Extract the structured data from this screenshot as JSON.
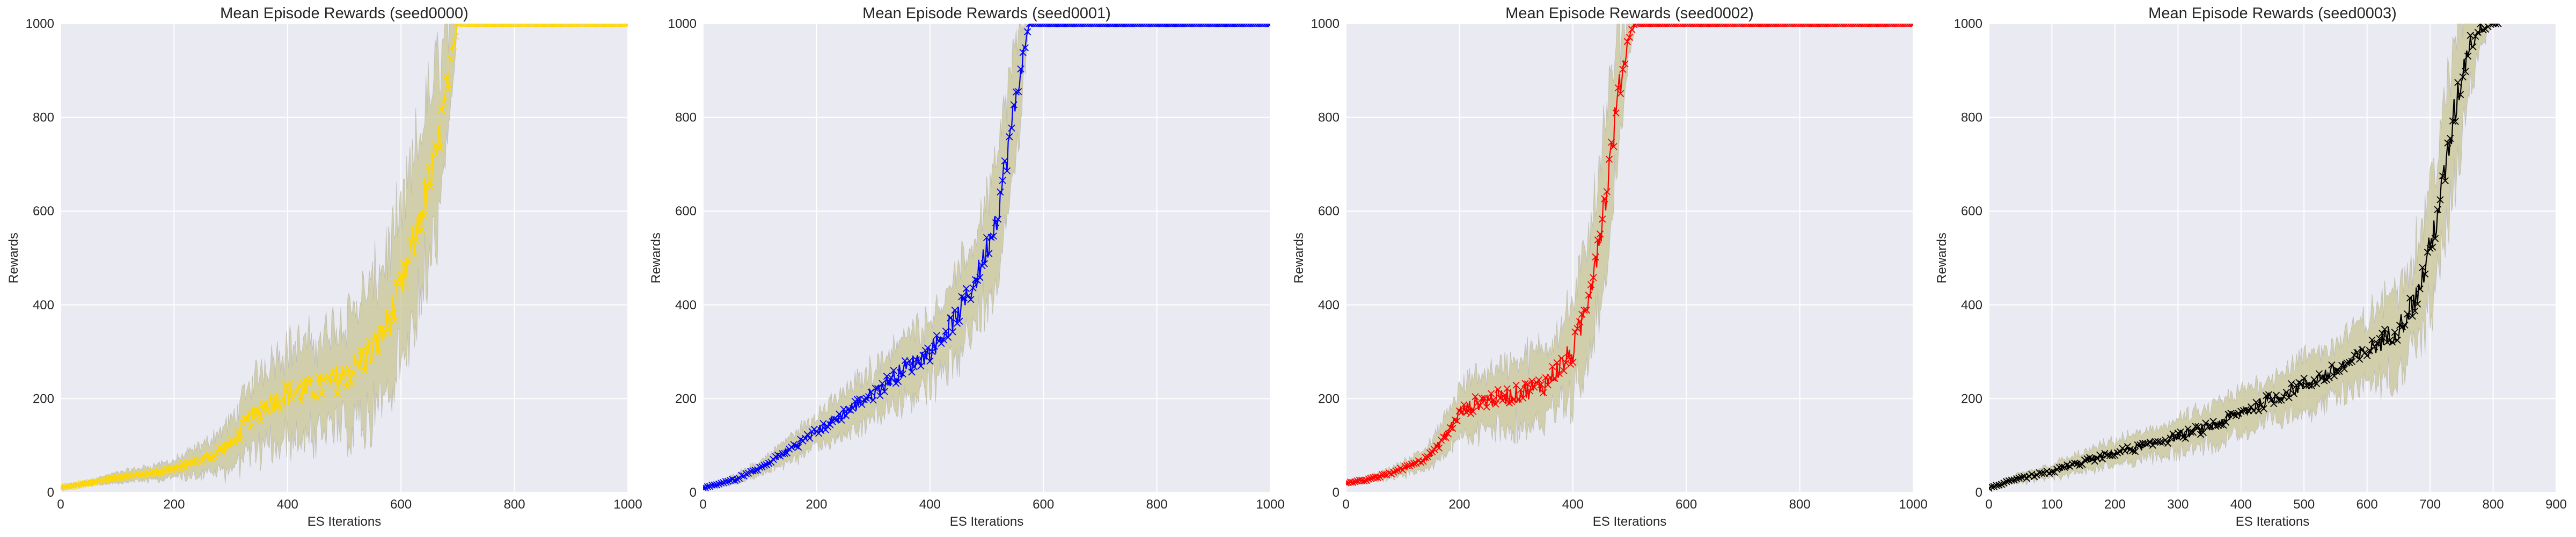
{
  "style": {
    "facecolor": "#EAEAF2",
    "gridcolor": "#FFFFFF",
    "band_color": "#C8C494",
    "band_edge_color": "#A9A9A9"
  },
  "chart_data": [
    {
      "type": "line",
      "title": "Mean Episode Rewards (seed0000)",
      "xlabel": "ES Iterations",
      "ylabel": "Rewards",
      "xlim": [
        0,
        1000
      ],
      "ylim": [
        0,
        1000
      ],
      "xticks": [
        0,
        200,
        400,
        600,
        800,
        1000
      ],
      "yticks": [
        0,
        200,
        400,
        600,
        800,
        1000
      ],
      "grid": true,
      "marker": "x",
      "color": "#FFD700",
      "reach_max_at": 700,
      "series": [
        {
          "x": [
            0,
            50,
            100,
            150,
            200,
            250,
            300,
            330,
            360,
            400,
            450,
            500,
            550,
            580,
            600,
            620,
            640,
            660,
            680,
            700,
            720,
            760,
            800,
            850,
            900,
            950,
            1000
          ],
          "y": [
            10,
            20,
            32,
            40,
            50,
            70,
            100,
            150,
            185,
            210,
            220,
            250,
            300,
            370,
            430,
            520,
            620,
            700,
            850,
            1000,
            1000,
            1000,
            1000,
            1000,
            1000,
            1000,
            1000
          ],
          "spread": [
            3,
            6,
            10,
            14,
            18,
            30,
            50,
            70,
            90,
            100,
            100,
            120,
            140,
            150,
            160,
            170,
            180,
            190,
            150,
            0,
            0,
            0,
            0,
            0,
            0,
            0,
            0
          ]
        }
      ]
    },
    {
      "type": "line",
      "title": "Mean Episode Rewards (seed0001)",
      "xlabel": "ES Iterations",
      "ylabel": "Rewards",
      "xlim": [
        0,
        1000
      ],
      "ylim": [
        0,
        1000
      ],
      "xticks": [
        0,
        200,
        400,
        600,
        800,
        1000
      ],
      "yticks": [
        0,
        200,
        400,
        600,
        800,
        1000
      ],
      "grid": true,
      "marker": "x",
      "color": "#0000FF",
      "reach_max_at": 575,
      "series": [
        {
          "x": [
            0,
            50,
            100,
            150,
            200,
            250,
            300,
            350,
            400,
            450,
            480,
            500,
            520,
            540,
            560,
            575,
            600,
            650,
            700,
            750,
            800,
            850,
            900,
            950,
            1000
          ],
          "y": [
            10,
            25,
            50,
            90,
            130,
            170,
            210,
            260,
            300,
            380,
            450,
            520,
            600,
            750,
            900,
            1000,
            1000,
            1000,
            1000,
            1000,
            1000,
            1000,
            1000,
            1000,
            1000
          ],
          "spread": [
            3,
            8,
            15,
            25,
            35,
            45,
            55,
            65,
            75,
            85,
            95,
            110,
            120,
            130,
            90,
            0,
            0,
            0,
            0,
            0,
            0,
            0,
            0,
            0,
            0
          ]
        }
      ]
    },
    {
      "type": "line",
      "title": "Mean Episode Rewards (seed0002)",
      "xlabel": "ES Iterations",
      "ylabel": "Rewards",
      "xlim": [
        0,
        1000
      ],
      "ylim": [
        0,
        1000
      ],
      "xticks": [
        0,
        200,
        400,
        600,
        800,
        1000
      ],
      "yticks": [
        0,
        200,
        400,
        600,
        800,
        1000
      ],
      "grid": true,
      "marker": "x",
      "color": "#FF0000",
      "reach_max_at": 510,
      "series": [
        {
          "x": [
            0,
            50,
            100,
            150,
            180,
            200,
            230,
            260,
            300,
            350,
            400,
            420,
            440,
            460,
            480,
            500,
            510,
            550,
            600,
            650,
            700,
            750,
            800,
            850,
            900,
            950,
            1000
          ],
          "y": [
            20,
            30,
            50,
            80,
            130,
            170,
            190,
            200,
            210,
            230,
            300,
            380,
            500,
            650,
            850,
            980,
            1000,
            1000,
            1000,
            1000,
            1000,
            1000,
            1000,
            1000,
            1000,
            1000,
            1000
          ],
          "spread": [
            4,
            8,
            14,
            25,
            40,
            50,
            60,
            65,
            70,
            80,
            100,
            120,
            140,
            150,
            120,
            40,
            0,
            0,
            0,
            0,
            0,
            0,
            0,
            0,
            0,
            0,
            0
          ]
        }
      ]
    },
    {
      "type": "line",
      "title": "Mean Episode Rewards (seed0003)",
      "xlabel": "ES Iterations",
      "ylabel": "Rewards",
      "xlim": [
        0,
        900
      ],
      "ylim": [
        0,
        1000
      ],
      "xticks": [
        0,
        100,
        200,
        300,
        400,
        500,
        600,
        700,
        800,
        900
      ],
      "yticks": [
        0,
        200,
        400,
        600,
        800,
        1000
      ],
      "grid": true,
      "marker": "x",
      "color": "#000000",
      "reach_max_at": 800,
      "series": [
        {
          "x": [
            0,
            50,
            100,
            150,
            200,
            250,
            300,
            350,
            400,
            450,
            500,
            550,
            600,
            650,
            680,
            700,
            720,
            740,
            760,
            780,
            800,
            810
          ],
          "y": [
            10,
            30,
            45,
            65,
            85,
            100,
            120,
            140,
            170,
            200,
            230,
            260,
            300,
            350,
            420,
            520,
            650,
            820,
            950,
            990,
            1000,
            1000
          ],
          "spread": [
            4,
            10,
            15,
            20,
            25,
            30,
            35,
            40,
            45,
            50,
            55,
            60,
            70,
            90,
            110,
            130,
            140,
            140,
            100,
            40,
            0,
            0
          ]
        }
      ]
    }
  ]
}
